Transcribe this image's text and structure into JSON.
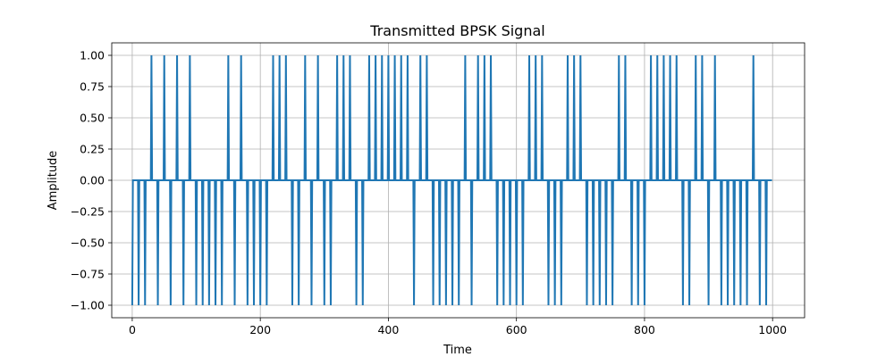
{
  "chart_data": {
    "type": "line",
    "title": "Transmitted BPSK Signal",
    "xlabel": "Time",
    "ylabel": "Amplitude",
    "xlim": [
      -32,
      1050
    ],
    "ylim": [
      -1.1,
      1.1
    ],
    "xticks": [
      0,
      200,
      400,
      600,
      800,
      1000
    ],
    "yticks": [
      -1.0,
      -0.75,
      -0.5,
      -0.25,
      0.0,
      0.25,
      0.5,
      0.75,
      1.0
    ],
    "xtick_labels": [
      "0",
      "200",
      "400",
      "600",
      "800",
      "1000"
    ],
    "ytick_labels": [
      "−1.00",
      "−0.75",
      "−0.50",
      "−0.25",
      "0.00",
      "0.25",
      "0.50",
      "0.75",
      "1.00"
    ],
    "grid": true,
    "series_color": "#1f77b4",
    "samples_per_bit": 10,
    "bits": [
      -1,
      -1,
      -1,
      1,
      -1,
      1,
      -1,
      1,
      -1,
      1,
      -1,
      -1,
      -1,
      -1,
      -1,
      1,
      -1,
      1,
      -1,
      -1,
      -1,
      -1,
      1,
      1,
      1,
      -1,
      -1,
      1,
      -1,
      1,
      -1,
      -1,
      1,
      1,
      1,
      -1,
      -1,
      1,
      1,
      1,
      1,
      1,
      1,
      1,
      -1,
      1,
      1,
      -1,
      -1,
      -1,
      -1,
      -1,
      1,
      -1,
      1,
      1,
      1,
      -1,
      -1,
      -1,
      -1,
      -1,
      1,
      1,
      1,
      -1,
      -1,
      -1,
      1,
      1,
      1,
      -1,
      -1,
      -1,
      -1,
      -1,
      1,
      1,
      -1,
      -1,
      -1,
      1,
      1,
      1,
      1,
      1,
      -1,
      -1,
      1,
      1,
      -1,
      1,
      -1,
      -1,
      -1,
      -1,
      -1,
      1,
      -1,
      -1
    ]
  }
}
